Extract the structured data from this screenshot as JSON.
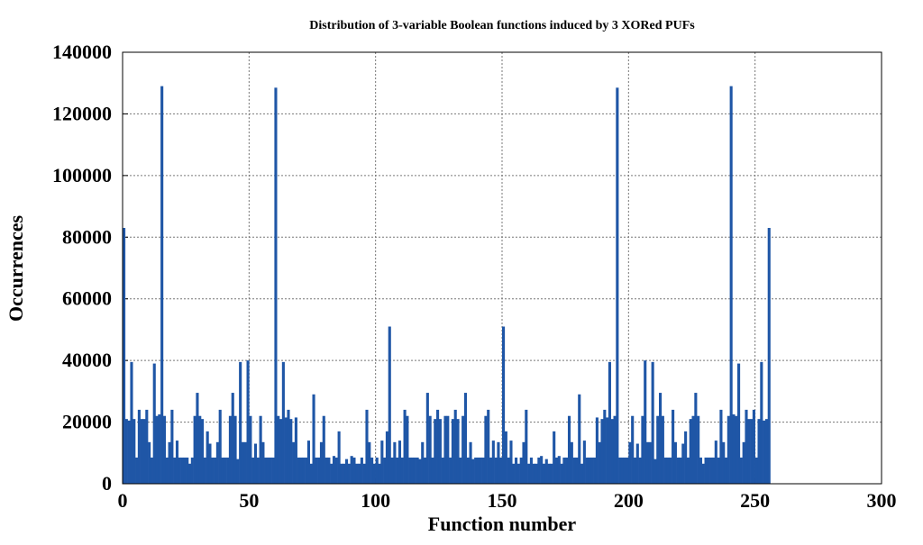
{
  "chart_data": {
    "type": "histogram",
    "title": "Distribution of 3-variable Boolean functions induced by 3 XORed PUFs",
    "xlabel": "Function number",
    "ylabel": "Occurrences",
    "color": "#1f56a6",
    "grid": true,
    "xlim": [
      0,
      300
    ],
    "xticks": [
      0,
      50,
      100,
      150,
      200,
      250,
      300
    ],
    "ylim": [
      0,
      140000
    ],
    "yticks": [
      0,
      20000,
      40000,
      60000,
      80000,
      100000,
      120000,
      140000
    ],
    "bins": [
      0,
      1,
      2,
      3,
      4,
      5,
      6,
      7,
      8,
      9,
      10,
      11,
      12,
      13,
      14,
      15,
      16,
      17,
      18,
      19,
      20,
      21,
      22,
      23,
      24,
      25,
      26,
      27,
      28,
      29,
      30,
      31,
      32,
      33,
      34,
      35,
      36,
      37,
      38,
      39,
      40,
      41,
      42,
      43,
      44,
      45,
      46,
      47,
      48,
      49,
      50,
      51,
      52,
      53,
      54,
      55,
      56,
      57,
      58,
      59,
      60,
      61,
      62,
      63,
      64,
      65,
      66,
      67,
      68,
      69,
      70,
      71,
      72,
      73,
      74,
      75,
      76,
      77,
      78,
      79,
      80,
      81,
      82,
      83,
      84,
      85,
      86,
      87,
      88,
      89,
      90,
      91,
      92,
      93,
      94,
      95,
      96,
      97,
      98,
      99,
      100,
      101,
      102,
      103,
      104,
      105,
      106,
      107,
      108,
      109,
      110,
      111,
      112,
      113,
      114,
      115,
      116,
      117,
      118,
      119,
      120,
      121,
      122,
      123,
      124,
      125,
      126,
      127,
      128,
      129,
      130,
      131,
      132,
      133,
      134,
      135,
      136,
      137,
      138,
      139,
      140,
      141,
      142,
      143,
      144,
      145,
      146,
      147,
      148,
      149,
      150,
      151,
      152,
      153,
      154,
      155,
      156,
      157,
      158,
      159,
      160,
      161,
      162,
      163,
      164,
      165,
      166,
      167,
      168,
      169,
      170,
      171,
      172,
      173,
      174,
      175,
      176,
      177,
      178,
      179,
      180,
      181,
      182,
      183,
      184,
      185,
      186,
      187,
      188,
      189,
      190,
      191,
      192,
      193,
      194,
      195,
      196,
      197,
      198,
      199,
      200,
      201,
      202,
      203,
      204,
      205,
      206,
      207,
      208,
      209,
      210,
      211,
      212,
      213,
      214,
      215,
      216,
      217,
      218,
      219,
      220,
      221,
      222,
      223,
      224,
      225,
      226,
      227,
      228,
      229,
      230,
      231,
      232,
      233,
      234,
      235,
      236,
      237,
      238,
      239,
      240,
      241,
      242,
      243,
      244,
      245,
      246,
      247,
      248,
      249,
      250,
      251,
      252,
      253,
      254,
      255,
      256
    ],
    "values": [
      83000,
      21000,
      20500,
      39500,
      21000,
      8500,
      24000,
      21000,
      21000,
      24000,
      13500,
      8500,
      39000,
      22000,
      22500,
      129000,
      22000,
      8500,
      13500,
      24000,
      8500,
      14000,
      8500,
      8500,
      8500,
      8500,
      6500,
      8500,
      22000,
      29500,
      22000,
      21000,
      8500,
      17000,
      13000,
      8500,
      8500,
      13500,
      24000,
      8500,
      8500,
      8500,
      22000,
      29500,
      22000,
      8000,
      39500,
      13500,
      13500,
      40000,
      22000,
      8500,
      13000,
      8500,
      22000,
      13500,
      8500,
      8500,
      8500,
      8500,
      128500,
      22000,
      21000,
      39500,
      21500,
      24000,
      21000,
      13500,
      21500,
      8500,
      8500,
      8500,
      8500,
      14000,
      6500,
      29000,
      8500,
      8500,
      13500,
      22000,
      8500,
      8500,
      6500,
      9000,
      8500,
      17000,
      6500,
      6500,
      8000,
      6500,
      9000,
      8500,
      6500,
      6500,
      8500,
      6500,
      24000,
      13500,
      8500,
      6500,
      8500,
      6500,
      14000,
      8500,
      17000,
      51000,
      8500,
      13500,
      8500,
      14000,
      8500,
      24000,
      22000,
      8500,
      8500,
      8500,
      8500,
      8000,
      13500,
      8500,
      29500,
      22000,
      8500,
      21000,
      24000,
      21000,
      8500,
      22000,
      22000,
      8500,
      21000,
      24000,
      21000,
      8500,
      22000,
      29500,
      8500,
      13500,
      8000,
      8500,
      8500,
      8500,
      8500,
      22000,
      24000,
      8500,
      14000,
      8500,
      13500,
      8500,
      51000,
      17000,
      8500,
      14000,
      6500,
      8500,
      6500,
      8500,
      13500,
      24000,
      6500,
      8500,
      6500,
      6500,
      8500,
      9000,
      6500,
      8000,
      6500,
      6500,
      17000,
      8500,
      9000,
      6500,
      8500,
      8500,
      22000,
      13500,
      8500,
      8500,
      29000,
      6500,
      14000,
      8500,
      8500,
      8500,
      8500,
      21500,
      13500,
      21000,
      24000,
      21500,
      39500,
      21000,
      22000,
      128500,
      8500,
      8500,
      8500,
      8500,
      13500,
      22000,
      8500,
      13000,
      8500,
      22000,
      40000,
      13500,
      13500,
      39500,
      8000,
      22000,
      29500,
      22000,
      8500,
      8500,
      8500,
      24000,
      13500,
      8500,
      8500,
      13000,
      17000,
      8500,
      21000,
      22000,
      29500,
      22000,
      8500,
      6500,
      8500,
      8500,
      8500,
      8500,
      14000,
      8500,
      24000,
      13500,
      8500,
      22000,
      129000,
      22500,
      22000,
      39000,
      8500,
      13500,
      24000,
      21000,
      21000,
      24000,
      8500,
      21000,
      39500,
      20500,
      21000,
      83000
    ]
  }
}
